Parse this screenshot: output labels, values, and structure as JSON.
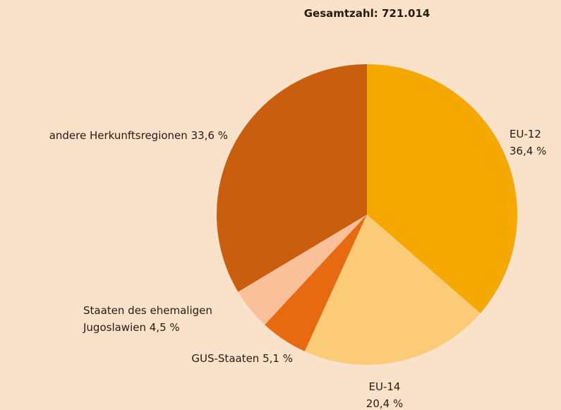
{
  "chart_data": {
    "type": "pie",
    "title": "Gesamtzahl: 721.014",
    "categories": [
      "EU-12",
      "EU-14",
      "GUS-Staaten",
      "Staaten des ehemaligen Jugoslawien",
      "andere Herkunftsregionen"
    ],
    "values": [
      36.4,
      20.4,
      5.1,
      4.5,
      33.6
    ],
    "value_labels": [
      "36,4 %",
      "20,4 %",
      "5,1 %",
      "4,5 %",
      "33,6 %"
    ],
    "colors": [
      "#f5a800",
      "#fccb77",
      "#e86a10",
      "#f9c09a",
      "#c85e0e"
    ]
  }
}
